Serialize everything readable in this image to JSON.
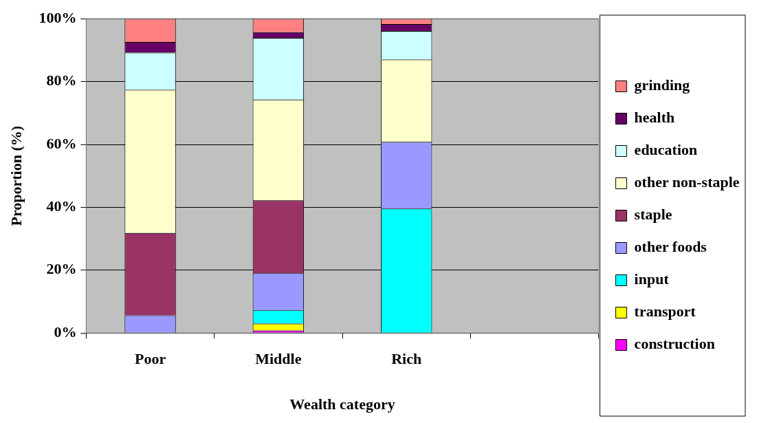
{
  "chart_data": {
    "type": "bar",
    "stacked": true,
    "xlabel": "Wealth category",
    "ylabel": "Proportion (%)",
    "categories": [
      "Poor",
      "Middle",
      "Rich",
      null
    ],
    "series": [
      {
        "name": "construction",
        "color": "#ff00ff",
        "values": [
          0,
          0.8,
          0,
          null
        ]
      },
      {
        "name": "transport",
        "color": "#ffff00",
        "values": [
          0,
          2.2,
          0,
          null
        ]
      },
      {
        "name": "input",
        "color": "#00ffff",
        "values": [
          0,
          4.3,
          39.6,
          null
        ]
      },
      {
        "name": "other foods",
        "color": "#9999ff",
        "values": [
          5.6,
          11.7,
          21.2,
          null
        ]
      },
      {
        "name": "staple",
        "color": "#993366",
        "values": [
          26.2,
          23.2,
          0,
          null
        ]
      },
      {
        "name": "other non-staple",
        "color": "#ffffcc",
        "values": [
          45.6,
          32.1,
          26.2,
          null
        ]
      },
      {
        "name": "education",
        "color": "#ccffff",
        "values": [
          11.8,
          19.6,
          9.1,
          null
        ]
      },
      {
        "name": "health",
        "color": "#660066",
        "values": [
          3.4,
          1.8,
          2.2,
          null
        ]
      },
      {
        "name": "grinding",
        "color": "#ff8080",
        "values": [
          7.4,
          4.3,
          1.7,
          null
        ]
      }
    ],
    "ylim": [
      0,
      100
    ],
    "yticks": [
      {
        "value": 0,
        "label": "0%"
      },
      {
        "value": 20,
        "label": "20%"
      },
      {
        "value": 40,
        "label": "40%"
      },
      {
        "value": 60,
        "label": "60%"
      },
      {
        "value": 80,
        "label": "80%"
      },
      {
        "value": 100,
        "label": "100%"
      }
    ],
    "grid": "y",
    "legend": "right"
  }
}
